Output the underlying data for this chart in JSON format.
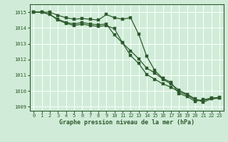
{
  "x": [
    0,
    1,
    2,
    3,
    4,
    5,
    6,
    7,
    8,
    9,
    10,
    11,
    12,
    13,
    14,
    15,
    16,
    17,
    18,
    19,
    20,
    21,
    22,
    23
  ],
  "line1": [
    1015.0,
    1015.0,
    1015.0,
    1014.8,
    1014.65,
    1014.55,
    1014.6,
    1014.55,
    1014.5,
    1014.85,
    1014.65,
    1014.55,
    1014.65,
    1013.6,
    1012.2,
    1011.3,
    1010.8,
    1010.55,
    1009.85,
    1009.65,
    1009.35,
    1009.45,
    1009.55,
    1009.55
  ],
  "line2": [
    1015.0,
    1015.0,
    1014.85,
    1014.55,
    1014.35,
    1014.25,
    1014.35,
    1014.25,
    1014.2,
    1014.25,
    1013.55,
    1013.05,
    1012.25,
    1011.75,
    1011.05,
    1010.75,
    1010.45,
    1010.25,
    1009.95,
    1009.75,
    1009.45,
    1009.4,
    1009.55,
    1009.6
  ],
  "line3": [
    1015.0,
    1015.0,
    1014.85,
    1014.5,
    1014.3,
    1014.15,
    1014.25,
    1014.15,
    1014.1,
    1014.15,
    1013.95,
    1013.05,
    1012.55,
    1012.05,
    1011.45,
    1011.15,
    1010.75,
    1010.45,
    1010.05,
    1009.8,
    1009.5,
    1009.3,
    1009.5,
    1009.55
  ],
  "background_color": "#d0ecd8",
  "grid_color": "#ffffff",
  "line_color": "#2d5a2d",
  "xlabel": "Graphe pression niveau de la mer (hPa)",
  "ylim_min": 1008.75,
  "ylim_max": 1015.5,
  "yticks": [
    1009,
    1010,
    1011,
    1012,
    1013,
    1014,
    1015
  ],
  "xticks": [
    0,
    1,
    2,
    3,
    4,
    5,
    6,
    7,
    8,
    9,
    10,
    11,
    12,
    13,
    14,
    15,
    16,
    17,
    18,
    19,
    20,
    21,
    22,
    23
  ],
  "marker_size": 2.5,
  "line_width": 0.9,
  "tick_fontsize": 5.0,
  "xlabel_fontsize": 6.0
}
